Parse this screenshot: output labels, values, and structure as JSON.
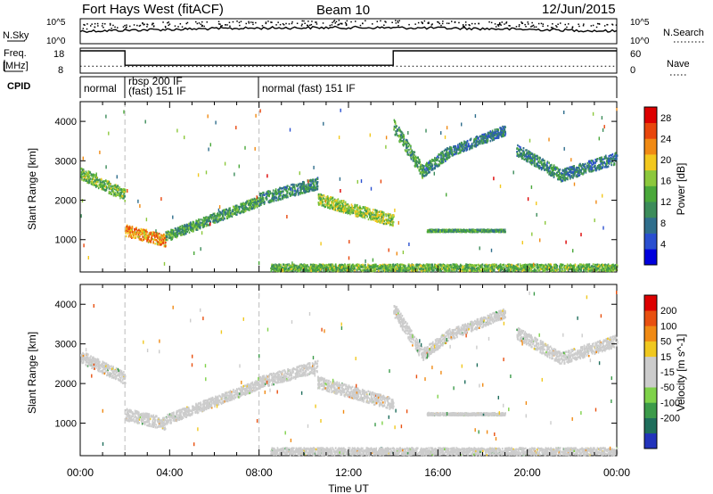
{
  "header": {
    "station": "Fort Hays West (fitACF)",
    "beam": "Beam 10",
    "date": "12/Jun/2015"
  },
  "strips": {
    "nsky_label": "N.Sky",
    "nsky_ticks": [
      "10^5",
      "10^0"
    ],
    "nsearch_label": "N.Search",
    "nsearch_ticks": [
      "10^5",
      "10^0"
    ],
    "freq_label_1": "Freq.",
    "freq_label_2": "[MHz]",
    "freq_ticks": [
      "18",
      "8"
    ],
    "nave_label": "Nave",
    "nave_ticks": [
      "60",
      "0"
    ],
    "cpid_label": "CPID",
    "cpid_segments": [
      {
        "line1": "normal",
        "line2": "",
        "start_h": 0.0,
        "end_h": 2.0
      },
      {
        "line1": "rbsp 200 IF",
        "line2": "(fast) 151 IF",
        "start_h": 2.0,
        "end_h": 8.0
      },
      {
        "line1": "normal (fast) 151 IF",
        "line2": "",
        "start_h": 8.0,
        "end_h": 24.0
      }
    ]
  },
  "chart_data": [
    {
      "type": "heatmap",
      "name": "power",
      "ylabel": "Slant Range [km]",
      "xlabel": "",
      "xlim": [
        0,
        24
      ],
      "ylim": [
        180,
        4500
      ],
      "yticks": [
        1000,
        2000,
        3000,
        4000
      ],
      "colorbar": {
        "label": "Power [dB]",
        "ticks": [
          "4",
          "8",
          "12",
          "16",
          "20",
          "24",
          "28"
        ],
        "range": [
          0,
          30
        ],
        "colors": [
          "#0000dd",
          "#2a4fd0",
          "#2f6e8c",
          "#3c8c5a",
          "#4aa83a",
          "#8cc83c",
          "#f2c81e",
          "#f08a14",
          "#e8460c",
          "#dd0000"
        ]
      },
      "bands": [
        {
          "t0": 0.0,
          "t1": 2.0,
          "r0": 2700,
          "r1": 2150,
          "width": 300,
          "level": 14
        },
        {
          "t0": 2.0,
          "t1": 3.8,
          "r0": 1250,
          "r1": 1000,
          "width": 300,
          "level": 22
        },
        {
          "t0": 3.8,
          "t1": 8.0,
          "r0": 1100,
          "r1": 2000,
          "width": 250,
          "level": 12
        },
        {
          "t0": 8.0,
          "t1": 10.6,
          "r0": 2050,
          "r1": 2450,
          "width": 300,
          "level": 10
        },
        {
          "t0": 10.6,
          "t1": 14.0,
          "r0": 2050,
          "r1": 1500,
          "width": 300,
          "level": 16
        },
        {
          "t0": 14.0,
          "t1": 15.3,
          "r0": 3900,
          "r1": 2750,
          "width": 350,
          "level": 12
        },
        {
          "t0": 15.3,
          "t1": 16.5,
          "r0": 2750,
          "r1": 3250,
          "width": 300,
          "level": 10
        },
        {
          "t0": 16.5,
          "t1": 19.0,
          "r0": 3250,
          "r1": 3800,
          "width": 250,
          "level": 8
        },
        {
          "t0": 19.5,
          "t1": 21.5,
          "r0": 3300,
          "r1": 2650,
          "width": 300,
          "level": 10
        },
        {
          "t0": 21.5,
          "t1": 24.0,
          "r0": 2650,
          "r1": 3100,
          "width": 300,
          "level": 8
        },
        {
          "t0": 15.5,
          "t1": 19.0,
          "r0": 1250,
          "r1": 1250,
          "width": 60,
          "level": 12
        },
        {
          "t0": 8.5,
          "t1": 24.0,
          "r0": 300,
          "r1": 300,
          "width": 200,
          "level": 14
        }
      ]
    },
    {
      "type": "heatmap",
      "name": "velocity",
      "ylabel": "Slant Range [km]",
      "xlabel": "Time UT",
      "xlim": [
        0,
        24
      ],
      "ylim": [
        180,
        4500
      ],
      "yticks": [
        1000,
        2000,
        3000,
        4000
      ],
      "xticks": [
        "00:00",
        "04:00",
        "08:00",
        "12:00",
        "16:00",
        "20:00",
        "00:00"
      ],
      "colorbar": {
        "label": "Velocity [m s^-1]",
        "ticks": [
          "200",
          "100",
          "50",
          "15",
          "-15",
          "-50",
          "-100",
          "-200"
        ],
        "range": [
          -250,
          250
        ],
        "colors": [
          "#2233bb",
          "#1f6e5c",
          "#3c9b4a",
          "#7fd24a",
          "#cccccc",
          "#cccccc",
          "#f0c820",
          "#f08a14",
          "#e85010",
          "#dd0000"
        ]
      },
      "bands": [
        {
          "t0": 0.0,
          "t1": 2.0,
          "r0": 2700,
          "r1": 2150,
          "width": 300,
          "level": 0
        },
        {
          "t0": 2.0,
          "t1": 3.8,
          "r0": 1250,
          "r1": 1000,
          "width": 300,
          "level": -20
        },
        {
          "t0": 3.8,
          "t1": 8.0,
          "r0": 1100,
          "r1": 2000,
          "width": 250,
          "level": 0
        },
        {
          "t0": 8.0,
          "t1": 10.6,
          "r0": 2050,
          "r1": 2450,
          "width": 300,
          "level": 0
        },
        {
          "t0": 10.6,
          "t1": 14.0,
          "r0": 2050,
          "r1": 1500,
          "width": 300,
          "level": 20
        },
        {
          "t0": 14.0,
          "t1": 15.3,
          "r0": 3900,
          "r1": 2750,
          "width": 350,
          "level": 0
        },
        {
          "t0": 15.3,
          "t1": 16.5,
          "r0": 2750,
          "r1": 3250,
          "width": 300,
          "level": 0
        },
        {
          "t0": 16.5,
          "t1": 19.0,
          "r0": 3250,
          "r1": 3800,
          "width": 250,
          "level": 0
        },
        {
          "t0": 19.5,
          "t1": 21.5,
          "r0": 3300,
          "r1": 2650,
          "width": 300,
          "level": 0
        },
        {
          "t0": 21.5,
          "t1": 24.0,
          "r0": 2650,
          "r1": 3100,
          "width": 300,
          "level": 0
        },
        {
          "t0": 15.5,
          "t1": 19.0,
          "r0": 1250,
          "r1": 1250,
          "width": 60,
          "level": 0
        },
        {
          "t0": 8.5,
          "t1": 24.0,
          "r0": 300,
          "r1": 300,
          "width": 200,
          "level": -20
        }
      ]
    }
  ],
  "colors": {
    "frame": "#000000",
    "separator": "#bbbbbb"
  }
}
